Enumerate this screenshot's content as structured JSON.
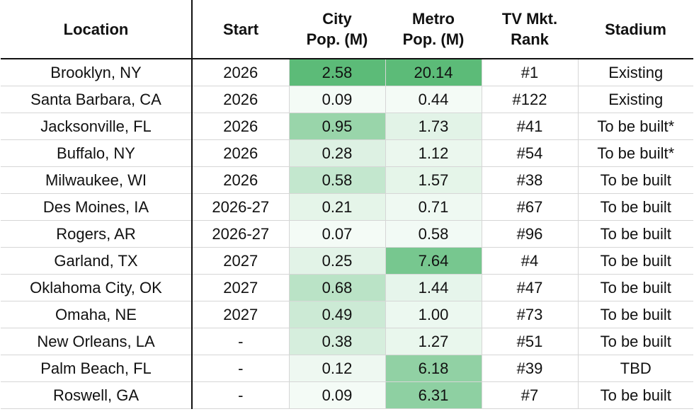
{
  "header": {
    "location": "Location",
    "start": "Start",
    "city_line1": "City",
    "city_line2": "Pop. (M)",
    "metro_line1": "Metro",
    "metro_line2": "Pop. (M)",
    "tv_line1": "TV Mkt.",
    "tv_line2": "Rank",
    "stadium": "Stadium"
  },
  "colors": {
    "heat_low": "#f4fbf6",
    "heat_high": "#5cbb78",
    "rule": "#111111",
    "grid": "#d6d6d6"
  },
  "rows": [
    {
      "location": "Brooklyn, NY",
      "start": "2026",
      "city": "2.58",
      "metro": "20.14",
      "tv": "#1",
      "stadium": "Existing",
      "city_level": 1.0,
      "metro_level": 1.0
    },
    {
      "location": "Santa Barbara, CA",
      "start": "2026",
      "city": "0.09",
      "metro": "0.44",
      "tv": "#122",
      "stadium": "Existing",
      "city_level": 0.0,
      "metro_level": 0.0
    },
    {
      "location": "Jacksonville, FL",
      "start": "2026",
      "city": "0.95",
      "metro": "1.73",
      "tv": "#41",
      "stadium": "To be built*",
      "city_level": 0.6,
      "metro_level": 0.12
    },
    {
      "location": "Buffalo, NY",
      "start": "2026",
      "city": "0.28",
      "metro": "1.12",
      "tv": "#54",
      "stadium": "To be built*",
      "city_level": 0.15,
      "metro_level": 0.06
    },
    {
      "location": "Milwaukee, WI",
      "start": "2026",
      "city": "0.58",
      "metro": "1.57",
      "tv": "#38",
      "stadium": "To be built",
      "city_level": 0.32,
      "metro_level": 0.1
    },
    {
      "location": "Des Moines, IA",
      "start": "2026-27",
      "city": "0.21",
      "metro": "0.71",
      "tv": "#67",
      "stadium": "To be built",
      "city_level": 0.1,
      "metro_level": 0.03
    },
    {
      "location": "Rogers, AR",
      "start": "2026-27",
      "city": "0.07",
      "metro": "0.58",
      "tv": "#96",
      "stadium": "To be built",
      "city_level": 0.0,
      "metro_level": 0.01
    },
    {
      "location": "Garland, TX",
      "start": "2027",
      "city": "0.25",
      "metro": "7.64",
      "tv": "#4",
      "stadium": "To be built",
      "city_level": 0.12,
      "metro_level": 0.82
    },
    {
      "location": "Oklahoma City, OK",
      "start": "2027",
      "city": "0.68",
      "metro": "1.44",
      "tv": "#47",
      "stadium": "To be built",
      "city_level": 0.38,
      "metro_level": 0.09
    },
    {
      "location": "Omaha, NE",
      "start": "2027",
      "city": "0.49",
      "metro": "1.00",
      "tv": "#73",
      "stadium": "To be built",
      "city_level": 0.26,
      "metro_level": 0.05
    },
    {
      "location": "New Orleans, LA",
      "start": "-",
      "city": "0.38",
      "metro": "1.27",
      "tv": "#51",
      "stadium": "To be built",
      "city_level": 0.2,
      "metro_level": 0.07
    },
    {
      "location": "Palm Beach, FL",
      "start": "-",
      "city": "0.12",
      "metro": "6.18",
      "tv": "#39",
      "stadium": "TBD",
      "city_level": 0.04,
      "metro_level": 0.65
    },
    {
      "location": "Roswell, GA",
      "start": "-",
      "city": "0.09",
      "metro": "6.31",
      "tv": "#7",
      "stadium": "To be built",
      "city_level": 0.0,
      "metro_level": 0.67
    }
  ]
}
